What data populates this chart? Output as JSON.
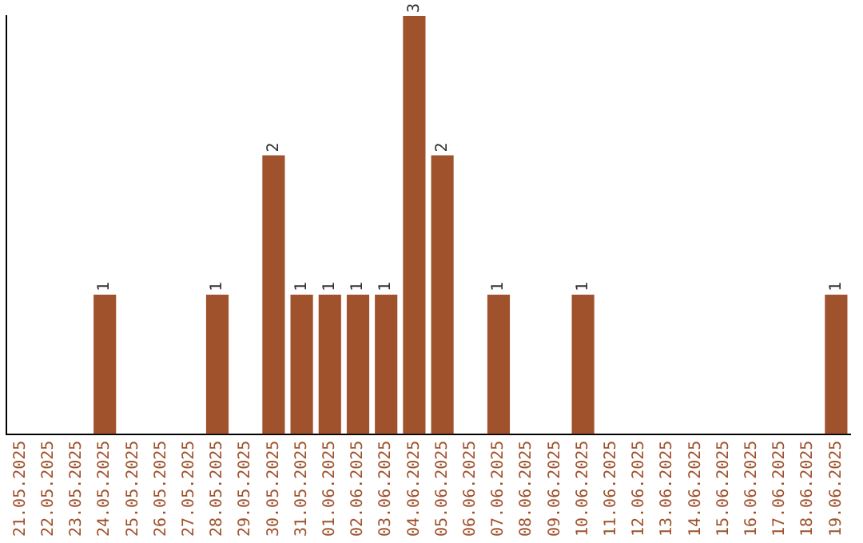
{
  "chart_data": {
    "type": "bar",
    "categories": [
      "21.05.2025",
      "22.05.2025",
      "23.05.2025",
      "24.05.2025",
      "25.05.2025",
      "26.05.2025",
      "27.05.2025",
      "28.05.2025",
      "29.05.2025",
      "30.05.2025",
      "31.05.2025",
      "01.06.2025",
      "02.06.2025",
      "03.06.2025",
      "04.06.2025",
      "05.06.2025",
      "06.06.2025",
      "07.06.2025",
      "08.06.2025",
      "09.06.2025",
      "10.06.2025",
      "11.06.2025",
      "12.06.2025",
      "13.06.2025",
      "14.06.2025",
      "15.06.2025",
      "16.06.2025",
      "17.06.2025",
      "18.06.2025",
      "19.06.2025"
    ],
    "values": [
      0,
      0,
      0,
      1,
      0,
      0,
      0,
      1,
      0,
      2,
      1,
      1,
      1,
      1,
      3,
      2,
      0,
      1,
      0,
      0,
      1,
      0,
      0,
      0,
      0,
      0,
      0,
      0,
      0,
      1
    ],
    "value_labels": [
      null,
      null,
      null,
      "1",
      null,
      null,
      null,
      "1",
      null,
      "2",
      "1",
      "1",
      "1",
      "1",
      "3",
      "2",
      null,
      "1",
      null,
      null,
      "1",
      null,
      null,
      null,
      null,
      null,
      null,
      null,
      null,
      "1"
    ],
    "color": "#a0522d",
    "grid": false,
    "legend": false,
    "tick_labels": "x"
  }
}
